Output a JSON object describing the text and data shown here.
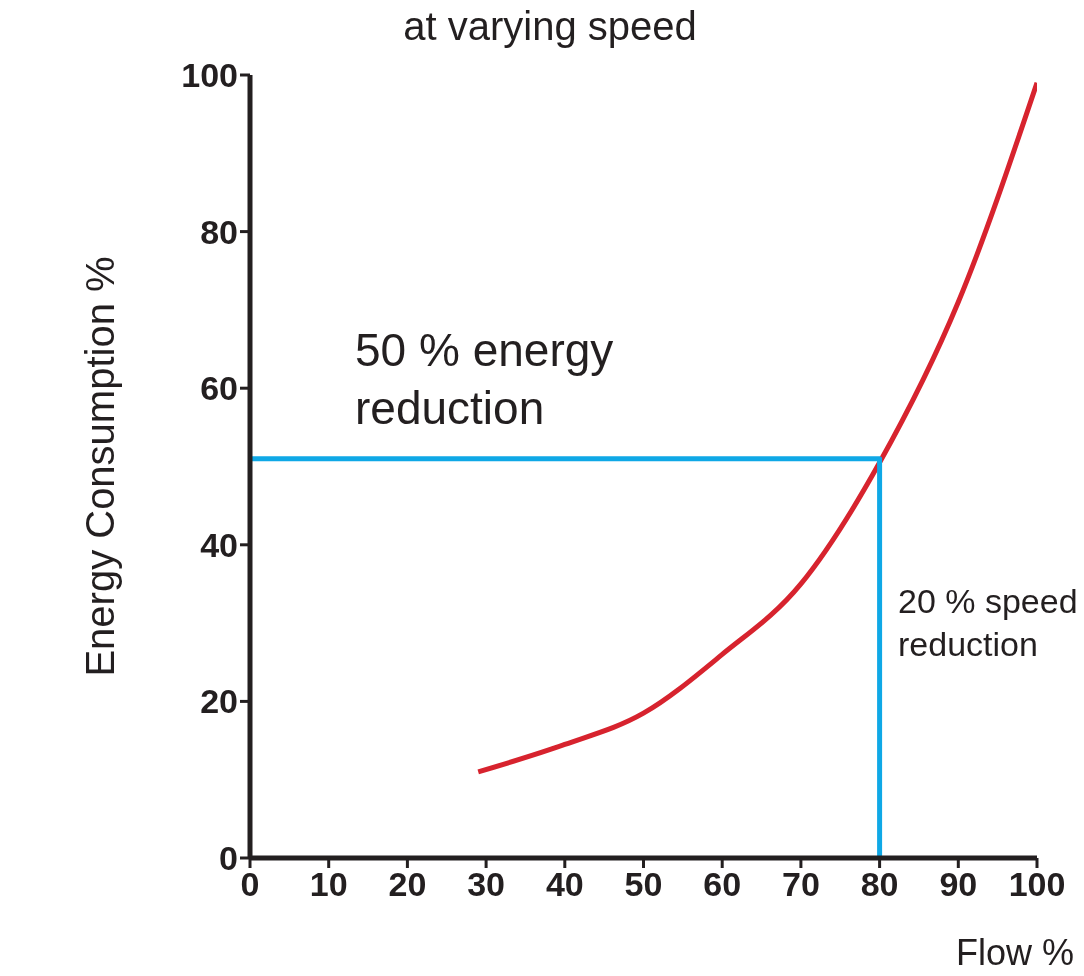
{
  "chart_data": {
    "type": "line",
    "title": "at varying speed",
    "xlabel": "Flow %",
    "ylabel": "Energy Consumption %",
    "xlim": [
      0,
      100
    ],
    "xticks": [
      0,
      10,
      20,
      30,
      40,
      50,
      60,
      70,
      80,
      90,
      100
    ],
    "ylim": [
      0,
      100
    ],
    "yticks": [
      0,
      20,
      40,
      60,
      80,
      100
    ],
    "marker": "none",
    "line_style": "solid",
    "series": [
      {
        "color": "#d7232e",
        "x": [
          29,
          40,
          50,
          60,
          70,
          80,
          90,
          100
        ],
        "values": [
          11,
          14.5,
          18.5,
          26,
          35,
          50.5,
          71,
          99
        ]
      },
      {
        "color": "#0fa8e6",
        "x": [
          0,
          80,
          80
        ],
        "values": [
          51,
          51,
          0
        ]
      }
    ],
    "annotations": [
      "50 % energy reduction",
      "20 % speed reduction"
    ]
  }
}
